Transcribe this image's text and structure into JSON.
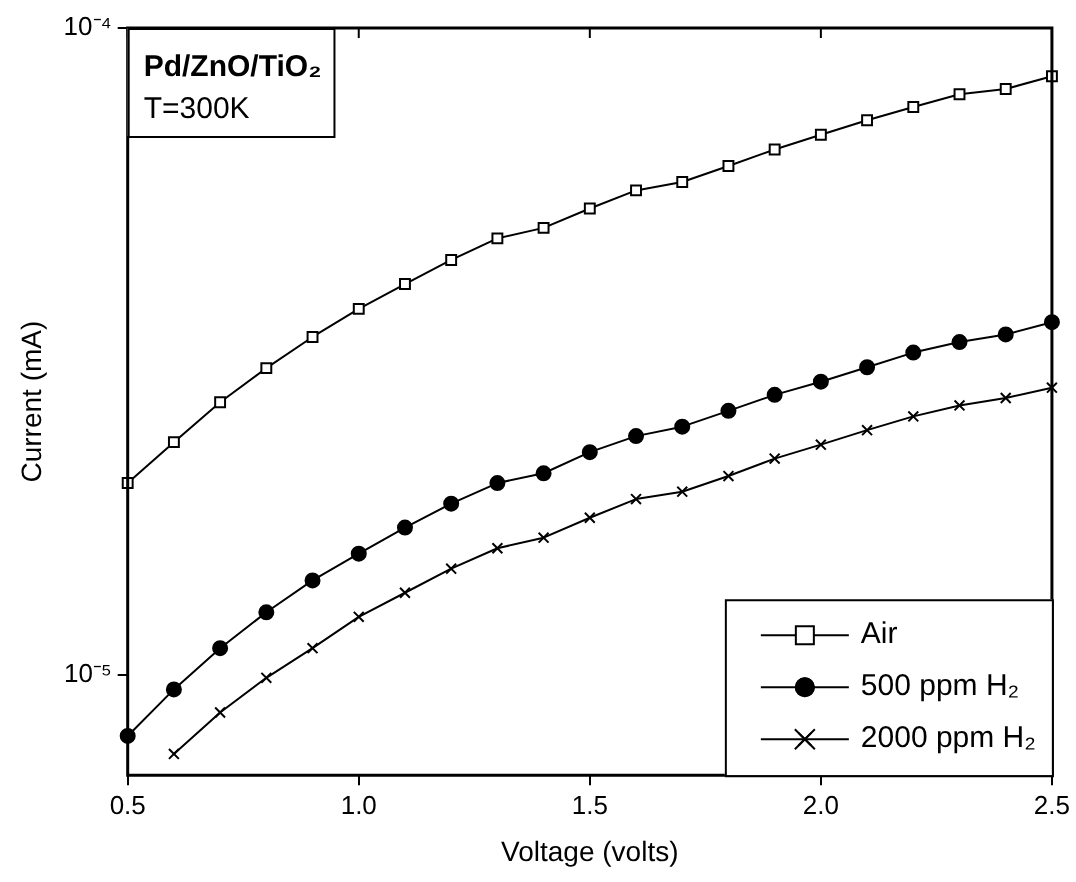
{
  "chart_data": {
    "type": "line",
    "xlabel": "Voltage (volts)",
    "ylabel": "Current (mA)",
    "annotations": [
      "Pd/ZnO/TiO₂",
      "T=300K"
    ],
    "x": [
      0.5,
      0.6,
      0.7,
      0.8,
      0.9,
      1.0,
      1.1,
      1.2,
      1.3,
      1.4,
      1.5,
      1.6,
      1.7,
      1.8,
      1.9,
      2.0,
      2.1,
      2.2,
      2.3,
      2.4,
      2.5
    ],
    "series": [
      {
        "name": "Air",
        "color": "#000000",
        "marker": "square",
        "values": [
          1.98e-05,
          2.29e-05,
          2.64e-05,
          2.98e-05,
          3.33e-05,
          3.68e-05,
          4.02e-05,
          4.38e-05,
          4.73e-05,
          4.91e-05,
          5.26e-05,
          5.61e-05,
          5.78e-05,
          6.12e-05,
          6.49e-05,
          6.84e-05,
          7.2e-05,
          7.55e-05,
          7.9e-05,
          8.05e-05,
          8.42e-05
        ]
      },
      {
        "name": "500 ppm H₂",
        "color": "#000000",
        "marker": "circle",
        "values": [
          8.05e-06,
          9.5e-06,
          1.1e-05,
          1.25e-05,
          1.4e-05,
          1.54e-05,
          1.69e-05,
          1.84e-05,
          1.98e-05,
          2.05e-05,
          2.21e-05,
          2.34e-05,
          2.42e-05,
          2.56e-05,
          2.71e-05,
          2.84e-05,
          2.99e-05,
          3.15e-05,
          3.27e-05,
          3.36e-05,
          3.51e-05
        ]
      },
      {
        "name": "2000 ppm H₂",
        "color": "#000000",
        "marker": "cross",
        "values": [
          null,
          7.55e-06,
          8.75e-06,
          9.9e-06,
          1.1e-05,
          1.23e-05,
          1.34e-05,
          1.46e-05,
          1.57e-05,
          1.63e-05,
          1.75e-05,
          1.87e-05,
          1.92e-05,
          2.03e-05,
          2.16e-05,
          2.27e-05,
          2.39e-05,
          2.51e-05,
          2.61e-05,
          2.68e-05,
          2.78e-05
        ]
      }
    ],
    "xlim": [
      0.5,
      2.5
    ],
    "xticks": [
      {
        "value": 0.5,
        "label": "0.5"
      },
      {
        "value": 1.0,
        "label": "1.0"
      },
      {
        "value": 1.5,
        "label": "1.5"
      },
      {
        "value": 2.0,
        "label": "2.0"
      },
      {
        "value": 2.5,
        "label": "2.5"
      }
    ],
    "ylim": [
      7e-06,
      0.0001
    ],
    "yticks": [
      {
        "value": 1e-05,
        "label": "10⁻⁵"
      },
      {
        "value": 0.0001,
        "label": "10⁻⁴"
      }
    ],
    "log": true,
    "grid": false,
    "legend": "bottom right",
    "line_style": "solid"
  }
}
